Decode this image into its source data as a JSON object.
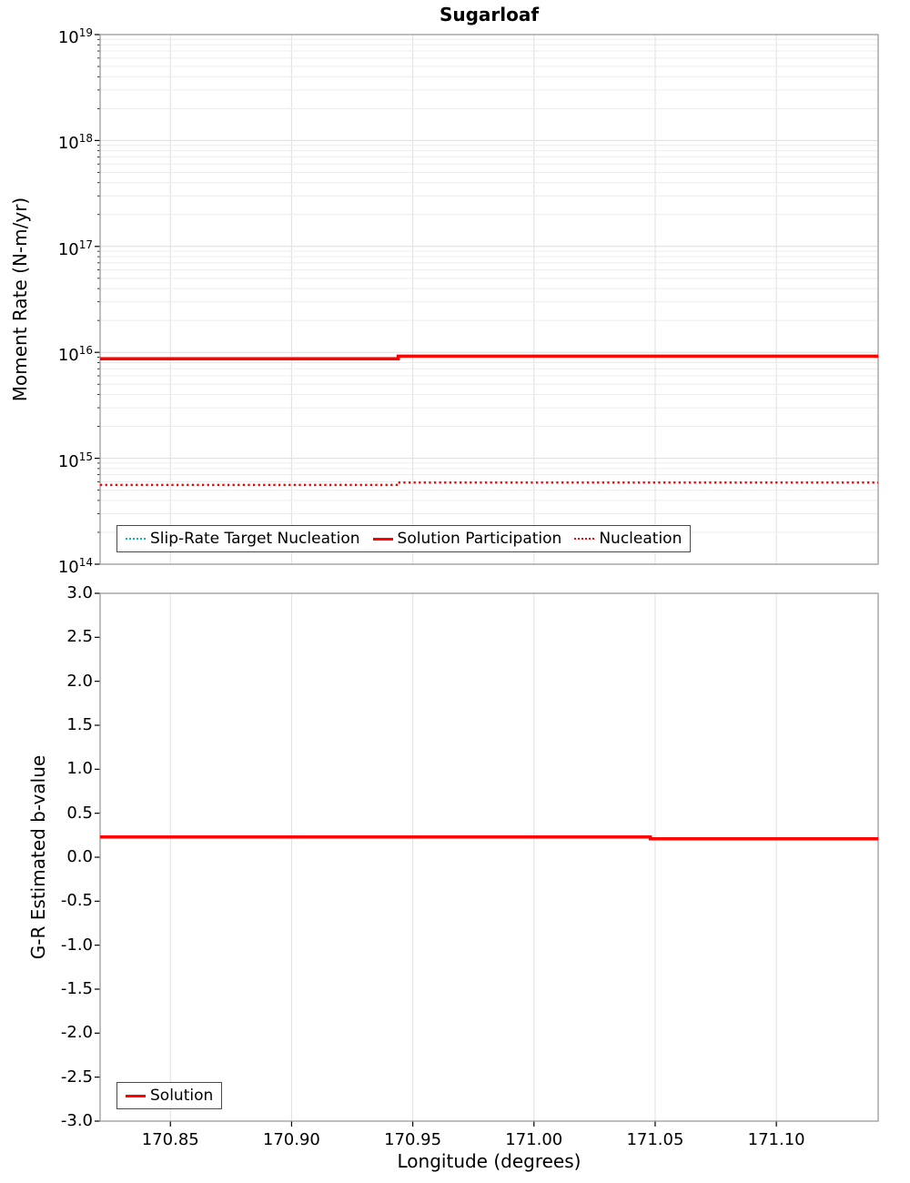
{
  "title": "Sugarloaf",
  "xlabel": "Longitude (degrees)",
  "chart_data": [
    {
      "type": "line",
      "ylabel": "Moment Rate (N-m/yr)",
      "yscale": "log",
      "ylim": [
        100000000000000.0,
        1e+19
      ],
      "xlim": [
        170.821,
        171.142
      ],
      "xticks": [
        170.85,
        170.9,
        170.95,
        171.0,
        171.05,
        171.1
      ],
      "show_x_tick_labels": false,
      "grid": true,
      "legend_position": "bottom-left",
      "series": [
        {
          "name": "Slip-Rate Target Nucleation",
          "color": "#00b6c2",
          "style": "dotted",
          "width": 2.2,
          "x": [
            170.821,
            170.944,
            170.944,
            171.142
          ],
          "y": [
            560000000000000.0,
            560000000000000.0,
            590000000000000.0,
            590000000000000.0
          ]
        },
        {
          "name": "Solution Participation",
          "color": "#ff0000",
          "style": "solid",
          "width": 3.5,
          "x": [
            170.821,
            170.944,
            170.944,
            171.142
          ],
          "y": [
            8700000000000000.0,
            8700000000000000.0,
            9200000000000000.0,
            9200000000000000.0
          ]
        },
        {
          "name": "Nucleation",
          "color": "#ff0000",
          "style": "dotted",
          "width": 2.4,
          "x": [
            170.821,
            170.944,
            170.944,
            171.142
          ],
          "y": [
            560000000000000.0,
            560000000000000.0,
            590000000000000.0,
            590000000000000.0
          ]
        }
      ]
    },
    {
      "type": "line",
      "ylabel": "G-R Estimated b-value",
      "yscale": "linear",
      "ylim": [
        -3.0,
        3.0
      ],
      "ytick_step": 0.5,
      "xlim": [
        170.821,
        171.142
      ],
      "xticks": [
        170.85,
        170.9,
        170.95,
        171.0,
        171.05,
        171.1
      ],
      "show_x_tick_labels": true,
      "grid": true,
      "legend_position": "bottom-left",
      "series": [
        {
          "name": "Solution",
          "color": "#ff0000",
          "style": "solid",
          "width": 3.5,
          "x": [
            170.821,
            171.048,
            171.048,
            171.142
          ],
          "y": [
            0.23,
            0.23,
            0.21,
            0.21
          ]
        }
      ]
    }
  ]
}
